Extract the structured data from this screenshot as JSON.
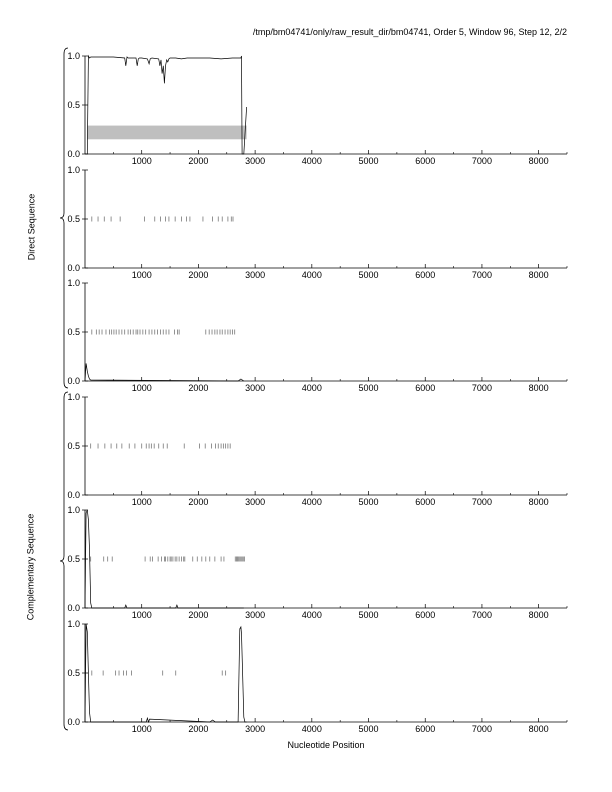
{
  "title": "/tmp/bm04741/only/raw_result_dir/bm04741, Order 5, Window 96, Step 12, 2/2",
  "xlabel": "Nucleotide Position",
  "group_labels": {
    "direct": "Direct Sequence",
    "complementary": "Complementary Sequence"
  },
  "colors": {
    "line": "#000000",
    "tick": "#777777",
    "band": "#bfbfbf",
    "axis": "#000000"
  },
  "chart_data": {
    "type": "line",
    "xlim": [
      0,
      8500
    ],
    "ylim": [
      0,
      1
    ],
    "x_ticks": [
      1000,
      2000,
      3000,
      4000,
      5000,
      6000,
      7000,
      8000
    ],
    "y_ticks": [
      0.0,
      0.5,
      1.0
    ],
    "y_tick_labels": [
      "0.0",
      "0.5",
      "1.0"
    ],
    "panels": [
      {
        "group": "direct",
        "series": {
          "x": [
            0,
            40,
            60,
            80,
            100,
            500,
            700,
            720,
            740,
            760,
            900,
            920,
            940,
            960,
            1000,
            1100,
            1130,
            1150,
            1180,
            1300,
            1320,
            1340,
            1360,
            1380,
            1400,
            1420,
            1440,
            1460,
            1480,
            1500,
            1600,
            1700,
            1800,
            2000,
            2200,
            2400,
            2600,
            2750,
            2760,
            2770,
            2800,
            2850
          ],
          "y": [
            0,
            0,
            1.0,
            0.98,
            0.99,
            0.99,
            0.98,
            0.9,
            0.99,
            0.98,
            0.98,
            0.9,
            0.97,
            0.98,
            0.98,
            0.97,
            0.92,
            0.97,
            0.98,
            0.97,
            0.9,
            0.96,
            0.82,
            0.9,
            0.72,
            0.9,
            0.96,
            0.94,
            0.97,
            0.98,
            0.98,
            0.97,
            0.98,
            0.98,
            0.98,
            0.97,
            0.98,
            0.98,
            1.0,
            0.0,
            0.0,
            0.48
          ]
        },
        "band": {
          "x0": 40,
          "x1": 2850,
          "y0": 0.15,
          "y1": 0.29
        },
        "ticks_at_half": []
      },
      {
        "group": "direct",
        "series": {
          "x": [],
          "y": []
        },
        "band": null,
        "ticks_at_half": [
          120,
          230,
          340,
          460,
          620,
          1050,
          1230,
          1330,
          1420,
          1480,
          1590,
          1700,
          1790,
          1850,
          2080,
          2250,
          2350,
          2420,
          2520,
          2580,
          2610
        ]
      },
      {
        "group": "direct",
        "series": {
          "x": [
            0,
            20,
            40,
            60,
            80,
            100,
            2700,
            2750,
            2800
          ],
          "y": [
            0,
            0.18,
            0.1,
            0.05,
            0.02,
            0.01,
            0.0,
            0.02,
            0.0
          ]
        },
        "band": null,
        "ticks_at_half": [
          120,
          200,
          250,
          300,
          370,
          430,
          470,
          510,
          550,
          600,
          650,
          700,
          760,
          800,
          850,
          900,
          930,
          970,
          1020,
          1070,
          1130,
          1180,
          1230,
          1280,
          1330,
          1380,
          1430,
          1480,
          1580,
          1630,
          1660,
          2130,
          2190,
          2240,
          2290,
          2330,
          2380,
          2420,
          2470,
          2520,
          2560,
          2600,
          2640
        ]
      },
      {
        "group": "complementary",
        "series": {
          "x": [],
          "y": []
        },
        "band": null,
        "ticks_at_half": [
          100,
          230,
          350,
          460,
          560,
          650,
          780,
          880,
          1000,
          1080,
          1130,
          1170,
          1220,
          1300,
          1380,
          1450,
          1750,
          2020,
          2120,
          2230,
          2300,
          2350,
          2400,
          2440,
          2480,
          2520,
          2560
        ]
      },
      {
        "group": "complementary",
        "series": {
          "x": [
            0,
            20,
            40,
            60,
            80,
            100,
            120,
            700,
            720,
            740,
            1600,
            1620,
            1640,
            2800
          ],
          "y": [
            0,
            0.97,
            1.0,
            0.9,
            0.6,
            0.05,
            0.0,
            0.0,
            0.03,
            0.0,
            0.0,
            0.03,
            0.0,
            0.0
          ]
        },
        "band": null,
        "ticks_at_half": [
          100,
          330,
          400,
          480,
          1060,
          1150,
          1190,
          1290,
          1350,
          1400,
          1420,
          1460,
          1500,
          1520,
          1550,
          1590,
          1620,
          1660,
          1700,
          1740,
          1760,
          1900,
          1980,
          2060,
          2130,
          2200,
          2290,
          2400,
          2450,
          2650,
          2670,
          2690,
          2710,
          2730,
          2750,
          2770,
          2790,
          2810
        ]
      },
      {
        "group": "complementary",
        "series": {
          "x": [
            0,
            20,
            40,
            60,
            80,
            100,
            1080,
            1100,
            1120,
            1140,
            2200,
            2250,
            2300,
            2700,
            2730,
            2750,
            2760,
            2780,
            2800,
            2820,
            2850
          ],
          "y": [
            0,
            1.0,
            0.92,
            0.5,
            0.1,
            0.0,
            0.0,
            0.04,
            0.0,
            0.03,
            0.0,
            0.02,
            0.0,
            0.0,
            0.95,
            0.97,
            0.9,
            0.5,
            0.05,
            0.0,
            0.0
          ]
        },
        "band": null,
        "ticks_at_half": [
          120,
          320,
          540,
          600,
          680,
          730,
          820,
          1370,
          1600,
          2420,
          2480
        ]
      }
    ]
  }
}
